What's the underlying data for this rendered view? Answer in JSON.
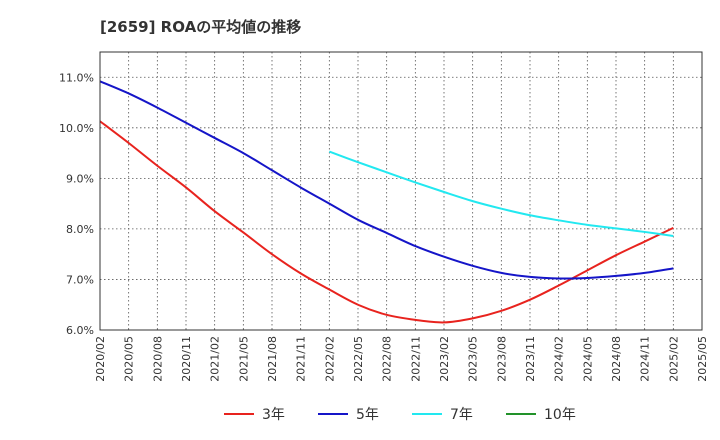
{
  "chart_data": {
    "type": "line",
    "title": "[2659]  ROAの平均値の推移",
    "xlabel": "",
    "ylabel": "",
    "ylim": [
      6.0,
      11.5
    ],
    "y_ticks": [
      "6.0%",
      "7.0%",
      "8.0%",
      "9.0%",
      "10.0%",
      "11.0%"
    ],
    "y_tick_values": [
      6.0,
      7.0,
      8.0,
      9.0,
      10.0,
      11.0
    ],
    "x_ticks": [
      "2020/02",
      "2020/05",
      "2020/08",
      "2020/11",
      "2021/02",
      "2021/05",
      "2021/08",
      "2021/11",
      "2022/02",
      "2022/05",
      "2022/08",
      "2022/11",
      "2023/02",
      "2023/05",
      "2023/08",
      "2023/11",
      "2024/02",
      "2024/05",
      "2024/08",
      "2024/11",
      "2025/02",
      "2025/05"
    ],
    "grid": true,
    "legend_position": "bottom",
    "series": [
      {
        "name": "3年",
        "color": "#e8231e",
        "x": [
          "2020/02",
          "2020/05",
          "2020/08",
          "2020/11",
          "2021/02",
          "2021/05",
          "2021/08",
          "2021/11",
          "2022/02",
          "2022/05",
          "2022/08",
          "2022/11",
          "2023/02",
          "2023/05",
          "2023/08",
          "2023/11",
          "2024/02",
          "2024/05",
          "2024/08",
          "2024/11",
          "2025/02"
        ],
        "values": [
          10.13,
          9.7,
          9.25,
          8.82,
          8.35,
          7.93,
          7.5,
          7.12,
          6.8,
          6.5,
          6.3,
          6.2,
          6.15,
          6.23,
          6.38,
          6.6,
          6.88,
          7.18,
          7.48,
          7.75,
          8.02
        ]
      },
      {
        "name": "5年",
        "color": "#1515c8",
        "x": [
          "2020/02",
          "2020/05",
          "2020/08",
          "2020/11",
          "2021/02",
          "2021/05",
          "2021/08",
          "2021/11",
          "2022/02",
          "2022/05",
          "2022/08",
          "2022/11",
          "2023/02",
          "2023/05",
          "2023/08",
          "2023/11",
          "2024/02",
          "2024/05",
          "2024/08",
          "2024/11",
          "2025/02"
        ],
        "values": [
          10.92,
          10.68,
          10.4,
          10.1,
          9.8,
          9.5,
          9.16,
          8.82,
          8.5,
          8.18,
          7.92,
          7.66,
          7.45,
          7.27,
          7.13,
          7.05,
          7.02,
          7.03,
          7.07,
          7.13,
          7.22
        ]
      },
      {
        "name": "7年",
        "color": "#22e8f0",
        "x": [
          "2022/02",
          "2022/05",
          "2022/08",
          "2022/11",
          "2023/02",
          "2023/05",
          "2023/08",
          "2023/11",
          "2024/02",
          "2024/05",
          "2024/08",
          "2024/11",
          "2025/02"
        ],
        "values": [
          9.53,
          9.32,
          9.12,
          8.92,
          8.73,
          8.55,
          8.4,
          8.27,
          8.17,
          8.08,
          8.01,
          7.94,
          7.86
        ]
      },
      {
        "name": "10年",
        "color": "#22922a",
        "x": [],
        "values": []
      }
    ]
  }
}
